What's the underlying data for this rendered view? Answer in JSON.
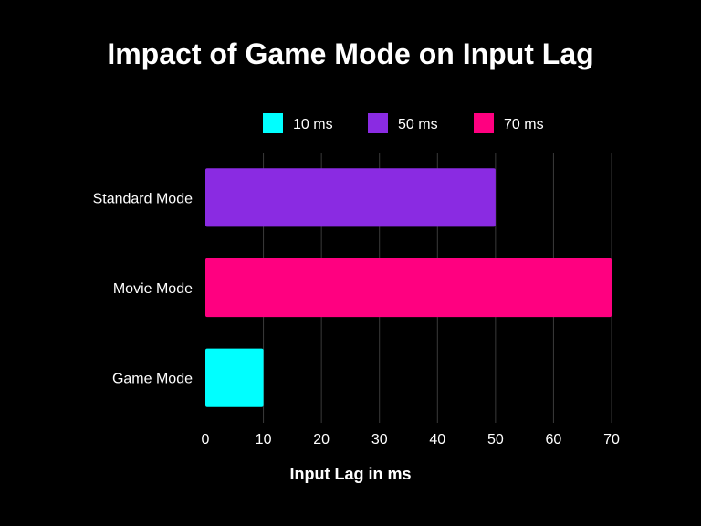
{
  "chart_data": {
    "type": "bar",
    "orientation": "horizontal",
    "title": "Impact of Game Mode on Input Lag",
    "xlabel": "Input Lag in ms",
    "ylabel": "",
    "categories": [
      "Standard Mode",
      "Movie Mode",
      "Game Mode"
    ],
    "values": [
      50,
      70,
      10
    ],
    "colors": [
      "#8A2BE2",
      "#FF0080",
      "#00FFFF"
    ],
    "xlim": [
      0,
      70
    ],
    "xticks": [
      0,
      10,
      20,
      30,
      40,
      50,
      60,
      70
    ],
    "grid": "vertical",
    "legend_position": "top-center",
    "legend": [
      {
        "label": "10 ms",
        "color": "#00FFFF"
      },
      {
        "label": "50 ms",
        "color": "#8A2BE2"
      },
      {
        "label": "70 ms",
        "color": "#FF0080"
      }
    ]
  },
  "colors": {
    "background": "#000000",
    "text": "#FFFFFF",
    "grid": "#3A3A3A"
  }
}
